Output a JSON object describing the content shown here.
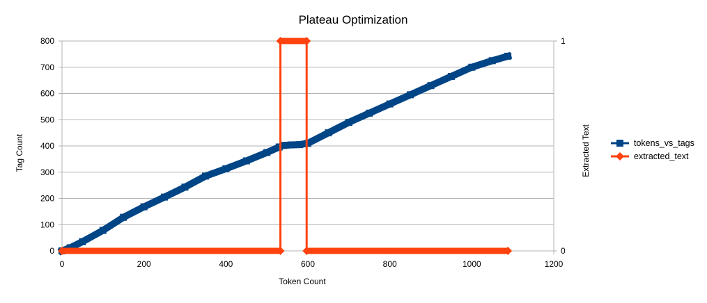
{
  "chart_data": {
    "type": "line",
    "title": "Plateau Optimization",
    "xlabel": "Token Count",
    "ylabel": "Tag Count",
    "y2label": "Extracted Text",
    "xlim": [
      0,
      1200
    ],
    "ylim": [
      0,
      800
    ],
    "y2lim": [
      0,
      1
    ],
    "xticks": [
      "0",
      "200",
      "400",
      "600",
      "800",
      "1000",
      "1200"
    ],
    "yticks": [
      "0",
      "100",
      "200",
      "300",
      "400",
      "500",
      "600",
      "700",
      "800"
    ],
    "y2ticks": [
      "0",
      "1"
    ],
    "grid": true,
    "legend_position": "right",
    "series": [
      {
        "name": "tokens_vs_tags",
        "axis": "left",
        "color": "#004586",
        "marker": "square",
        "x": [
          0,
          20,
          50,
          100,
          150,
          200,
          250,
          300,
          350,
          400,
          450,
          500,
          530,
          540,
          560,
          580,
          600,
          650,
          700,
          750,
          800,
          850,
          900,
          950,
          1000,
          1050,
          1088
        ],
        "y": [
          0,
          12,
          35,
          78,
          128,
          168,
          205,
          243,
          285,
          313,
          343,
          375,
          396,
          402,
          404,
          405,
          410,
          450,
          490,
          525,
          560,
          595,
          630,
          665,
          700,
          725,
          742
        ]
      },
      {
        "name": "extracted_text",
        "axis": "right",
        "color": "#ff420e",
        "marker": "diamond",
        "x": [
          0,
          533,
          533,
          597,
          597,
          1088
        ],
        "y": [
          0,
          0,
          1,
          1,
          0,
          0
        ]
      }
    ]
  }
}
